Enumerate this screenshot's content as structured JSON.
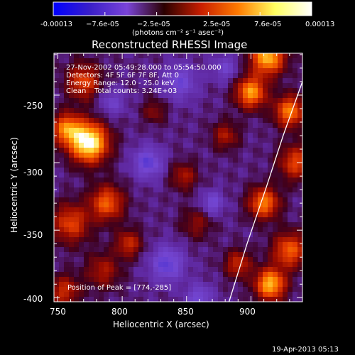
{
  "colorbar": {
    "ticks": [
      "-0.00013",
      "−7.6e-05",
      "−2.5e-05",
      "2.5e-05",
      "7.6e-05",
      "0.00013"
    ],
    "label": "(photons cm⁻² s⁻¹ asec⁻²)",
    "colors": [
      "#0000ff",
      "#3a1fc8",
      "#7a44d8",
      "#2a0000",
      "#c81e00",
      "#ff7a00",
      "#ffff60",
      "#ffffff"
    ]
  },
  "overlay": {
    "line1": "27-Nov-2002 05:49:28.000 to 05:54:50.000",
    "line2": "Detectors: 4F 5F 6F 7F 8F, Att 0",
    "line3": "Energy Range: 12.0 - 25.0 keV",
    "line4_method": "Clean",
    "line4_counts": "Total counts: 3.24E+03",
    "peak": "Position of Peak = [774,-285]"
  },
  "footer": {
    "timestamp": "19-Apr-2013 05:13"
  },
  "chart_data": {
    "type": "heatmap",
    "title": "Reconstructed RHESSI Image",
    "xlabel": "Heliocentric X (arcsec)",
    "ylabel": "Heliocentric Y (arcsec)",
    "xlim": [
      747,
      940
    ],
    "ylim": [
      -403,
      -219
    ],
    "xticks": [
      750,
      800,
      850,
      900
    ],
    "yticks": [
      -250,
      -300,
      -350,
      -400
    ],
    "value_range": [
      -0.00013,
      0.00013
    ],
    "peak_position": [
      774,
      -285
    ],
    "blobs": [
      {
        "x": 774,
        "y": -285,
        "value": 0.00013,
        "sigma": 10
      },
      {
        "x": 757,
        "y": -275,
        "value": 8e-05,
        "sigma": 8
      },
      {
        "x": 770,
        "y": -240,
        "value": 6e-05,
        "sigma": 9
      },
      {
        "x": 788,
        "y": -330,
        "value": 7e-05,
        "sigma": 9
      },
      {
        "x": 760,
        "y": -345,
        "value": 6e-05,
        "sigma": 10
      },
      {
        "x": 805,
        "y": -360,
        "value": 5e-05,
        "sigma": 7
      },
      {
        "x": 785,
        "y": -380,
        "value": 4e-05,
        "sigma": 9
      },
      {
        "x": 755,
        "y": -395,
        "value": 5e-05,
        "sigma": 8
      },
      {
        "x": 825,
        "y": -262,
        "value": 3e-05,
        "sigma": 6
      },
      {
        "x": 848,
        "y": -310,
        "value": 4e-05,
        "sigma": 7
      },
      {
        "x": 858,
        "y": -345,
        "value": 3e-05,
        "sigma": 8
      },
      {
        "x": 880,
        "y": -280,
        "value": 4e-05,
        "sigma": 7
      },
      {
        "x": 913,
        "y": -222,
        "value": 0.0001,
        "sigma": 9
      },
      {
        "x": 900,
        "y": -248,
        "value": 9e-05,
        "sigma": 8
      },
      {
        "x": 930,
        "y": -262,
        "value": 8e-05,
        "sigma": 8
      },
      {
        "x": 935,
        "y": -300,
        "value": 6e-05,
        "sigma": 9
      },
      {
        "x": 910,
        "y": -330,
        "value": 8e-05,
        "sigma": 8
      },
      {
        "x": 930,
        "y": -365,
        "value": 7e-05,
        "sigma": 9
      },
      {
        "x": 915,
        "y": -390,
        "value": 0.0001,
        "sigma": 8
      },
      {
        "x": 890,
        "y": -375,
        "value": 5e-05,
        "sigma": 7
      },
      {
        "x": 820,
        "y": -300,
        "value": -5e-05,
        "sigma": 8
      },
      {
        "x": 845,
        "y": -240,
        "value": -4e-05,
        "sigma": 9
      },
      {
        "x": 870,
        "y": -330,
        "value": -4e-05,
        "sigma": 6
      },
      {
        "x": 835,
        "y": -375,
        "value": -5e-05,
        "sigma": 9
      },
      {
        "x": 860,
        "y": -400,
        "value": -4e-05,
        "sigma": 7
      },
      {
        "x": 792,
        "y": -255,
        "value": -3e-05,
        "sigma": 7
      },
      {
        "x": 880,
        "y": -230,
        "value": -3e-05,
        "sigma": 7
      }
    ],
    "limb_line": [
      [
        883,
        -403
      ],
      [
        897,
        -360
      ],
      [
        912,
        -318
      ],
      [
        925,
        -280
      ],
      [
        940,
        -240
      ]
    ]
  }
}
